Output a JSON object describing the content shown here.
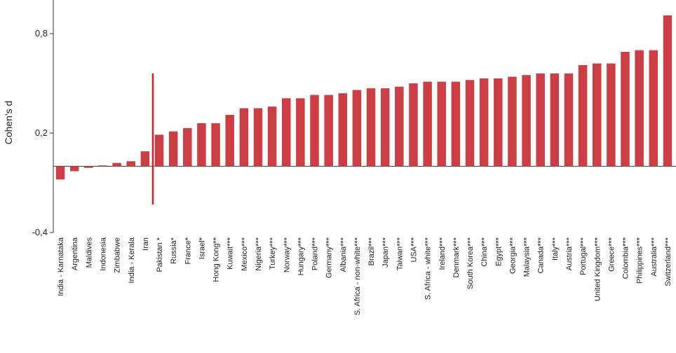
{
  "chart_data": {
    "type": "bar",
    "ylabel": "Cohen's d",
    "ylim": [
      -0.4,
      1.0
    ],
    "yticks": [
      -0.4,
      0.2,
      0.8
    ],
    "ytick_labels": [
      "-0,4",
      "0,2",
      "0,8"
    ],
    "grid": false,
    "bar_color": "#cc3d44",
    "divider_color": "#e01b24",
    "divider_after_index": 6,
    "categories": [
      "India - Karnataka",
      "Argentina",
      "Maldives",
      "Indonesia",
      "Zimbabwe",
      "India - Kerala",
      "Iran",
      "Pakistan *",
      "Russia*",
      "France*",
      "Israel*",
      "Hong Kong**",
      "Kuwait***",
      "Mexico***",
      "Nigeria***",
      "Turkey***",
      "Norway***",
      "Hungary***",
      "Poland***",
      "Germany***",
      "Albania***",
      "S. Africa - non-white***",
      "Brazil***",
      "Japan***",
      "Taiwan***",
      "USA***",
      "S. Africa - white***",
      "Ireland***",
      "Denmark***",
      "South Korea***",
      "China***",
      "Egypt***",
      "Georgia***",
      "Malaysia***",
      "Canada***",
      "Italy***",
      "Austria***",
      "Portugal***",
      "United Kingdom***",
      "Greece***",
      "Colombia***",
      "Philippines***",
      "Australia***",
      "Switzerland***"
    ],
    "values": [
      -0.08,
      -0.03,
      -0.01,
      0.005,
      0.02,
      0.03,
      0.09,
      0.19,
      0.21,
      0.23,
      0.26,
      0.26,
      0.31,
      0.35,
      0.35,
      0.36,
      0.41,
      0.41,
      0.43,
      0.43,
      0.44,
      0.46,
      0.47,
      0.47,
      0.48,
      0.5,
      0.51,
      0.51,
      0.51,
      0.52,
      0.53,
      0.53,
      0.54,
      0.55,
      0.56,
      0.56,
      0.56,
      0.61,
      0.62,
      0.62,
      0.69,
      0.7,
      0.7,
      0.91
    ]
  }
}
